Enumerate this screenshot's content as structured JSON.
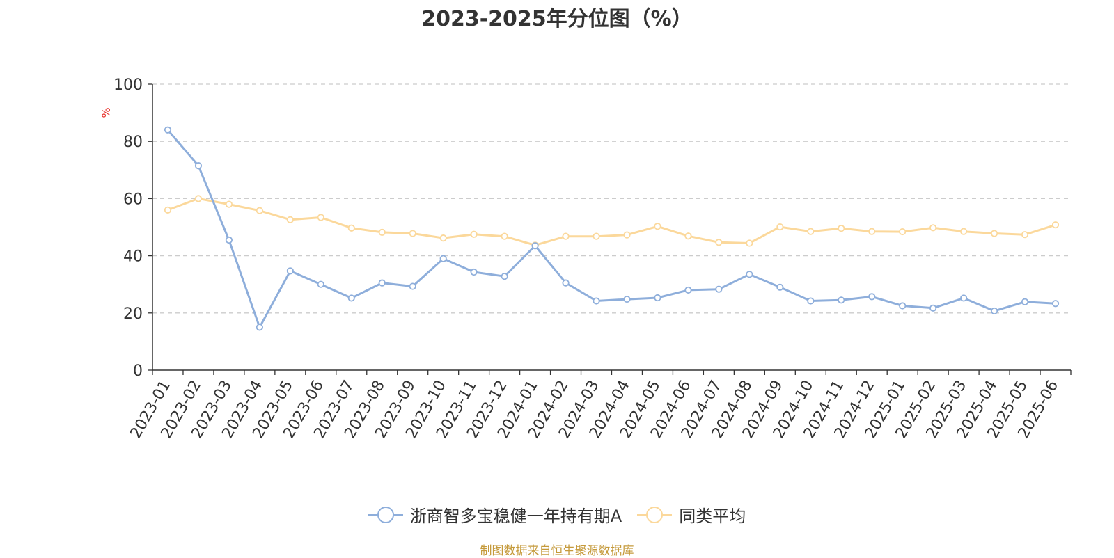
{
  "chart_data": {
    "type": "line",
    "title": "2023-2025年分位图（%）",
    "ylabel": "%",
    "ylim": [
      0,
      100
    ],
    "yticks": [
      "0",
      "20",
      "40",
      "60",
      "80",
      "100"
    ],
    "grid": "horizontal-dashed",
    "legend_position": "bottom-center",
    "categories": [
      "2023-01",
      "2023-02",
      "2023-03",
      "2023-04",
      "2023-05",
      "2023-06",
      "2023-07",
      "2023-08",
      "2023-09",
      "2023-10",
      "2023-11",
      "2023-12",
      "2024-01",
      "2024-02",
      "2024-03",
      "2024-04",
      "2024-05",
      "2024-06",
      "2024-07",
      "2024-08",
      "2024-09",
      "2024-10",
      "2024-11",
      "2024-12",
      "2025-01",
      "2025-02",
      "2025-03",
      "2025-04",
      "2025-05",
      "2025-06"
    ],
    "series": [
      {
        "name": "浙商智多宝稳健一年持有期A",
        "color": "#8eaedb",
        "values": [
          84,
          71.5,
          45.5,
          15,
          34.7,
          30,
          25.2,
          30.5,
          29.3,
          39,
          34.3,
          32.8,
          43.5,
          30.5,
          24.2,
          24.8,
          25.3,
          28,
          28.3,
          33.5,
          29,
          24.2,
          24.5,
          25.7,
          22.5,
          21.7,
          25.2,
          20.7,
          23.9,
          23.3
        ]
      },
      {
        "name": "同类平均",
        "color": "#fbd89b",
        "values": [
          56,
          60,
          58,
          55.8,
          52.6,
          53.4,
          49.7,
          48.2,
          47.8,
          46.2,
          47.5,
          46.8,
          43.7,
          46.8,
          46.8,
          47.3,
          50.3,
          46.9,
          44.7,
          44.4,
          50.1,
          48.5,
          49.6,
          48.5,
          48.4,
          49.8,
          48.5,
          47.8,
          47.4,
          50.8
        ]
      }
    ]
  },
  "footer": "制图数据来自恒生聚源数据库"
}
